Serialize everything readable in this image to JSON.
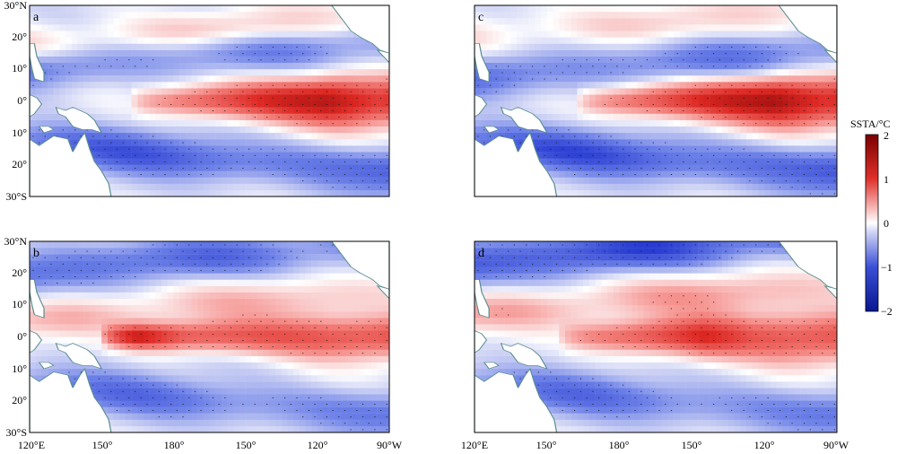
{
  "chart_data": {
    "type": "heatmap",
    "variable_label": "SSTA/°C",
    "colorbar": {
      "range": [
        -2,
        2
      ],
      "ticks": [
        "2",
        "1",
        "0",
        "−1",
        "−2"
      ],
      "tick_values": [
        2,
        1,
        0,
        -1,
        -2
      ],
      "colors": {
        "negative": "#0a1a9e",
        "neutral": "#ffffff",
        "positive": "#8b0000"
      }
    },
    "latitude_ticks": [
      "30°N",
      "20°",
      "10°",
      "0°",
      "10°",
      "20°",
      "30°S"
    ],
    "longitude_ticks": [
      "120°E",
      "150°",
      "180°",
      "150°",
      "120°",
      "90°W"
    ],
    "lat_range": [
      -30,
      30
    ],
    "lon_range_east": [
      120,
      270
    ],
    "significance_stippling": true,
    "panels": [
      {
        "id": "a",
        "label": "a",
        "features": [
          {
            "kind": "warm_tongue",
            "lon_west": 162,
            "lon_peak": 245,
            "lat_center": 0,
            "lat_halfwidth": 7,
            "peak": 1.7
          },
          {
            "kind": "cool_band",
            "lat_center": 15,
            "value": -0.6
          },
          {
            "kind": "cool_band",
            "lat_center": -18,
            "value": -0.8
          },
          {
            "kind": "warm_band",
            "lat_center": 22,
            "value": 0.5
          }
        ]
      },
      {
        "id": "b",
        "label": "b",
        "features": [
          {
            "kind": "warm_tongue",
            "lon_west": 150,
            "lon_peak": 165,
            "lat_center": 0,
            "lat_halfwidth": 6,
            "peak": 1.4
          },
          {
            "kind": "warm_band",
            "lat_center": 10,
            "value": 0.5
          },
          {
            "kind": "cool_band",
            "lat_center": 25,
            "value": -0.7
          },
          {
            "kind": "cool_band",
            "lat_center": -20,
            "value": -0.6
          }
        ]
      },
      {
        "id": "c",
        "label": "c",
        "features": [
          {
            "kind": "warm_tongue",
            "lon_west": 162,
            "lon_peak": 245,
            "lat_center": 0,
            "lat_halfwidth": 7,
            "peak": 1.8
          },
          {
            "kind": "cool_band",
            "lat_center": 12,
            "value": -0.6
          },
          {
            "kind": "cool_band",
            "lat_center": -18,
            "value": -0.9
          },
          {
            "kind": "warm_band",
            "lat_center": 25,
            "value": 0.4
          }
        ]
      },
      {
        "id": "d",
        "label": "d",
        "features": [
          {
            "kind": "warm_tongue",
            "lon_west": 155,
            "lon_peak": 215,
            "lat_center": 0,
            "lat_halfwidth": 7,
            "peak": 1.4
          },
          {
            "kind": "warm_band",
            "lat_center": 12,
            "value": 0.6
          },
          {
            "kind": "cool_band",
            "lat_center": 28,
            "value": -1.0
          },
          {
            "kind": "cool_band",
            "lat_center": -20,
            "value": -0.6
          }
        ]
      }
    ]
  }
}
